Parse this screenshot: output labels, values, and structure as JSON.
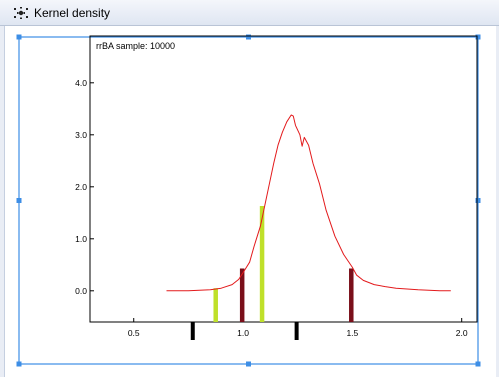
{
  "window": {
    "title": "Kernel density",
    "icon": "kernel-density-app-icon"
  },
  "colors": {
    "curve": "#e31a1c",
    "dark_bar": "#7a0f1a",
    "light_bar": "#bfe02a",
    "rug": "#000000",
    "selection": "#3d8ee6"
  },
  "chart_data": {
    "type": "line",
    "title": "rrBA sample: 10000",
    "xlabel": "",
    "ylabel": "",
    "xlim": [
      0.3,
      2.07
    ],
    "ylim": [
      -0.6,
      4.9
    ],
    "xticks": [
      0.5,
      1.0,
      1.5,
      2.0
    ],
    "xtick_labels": [
      "0.5",
      "1.0",
      "1.5",
      "2.0"
    ],
    "yticks": [
      0.0,
      1.0,
      2.0,
      3.0,
      4.0
    ],
    "ytick_labels": [
      "0.0",
      "1.0",
      "2.0",
      "3.0",
      "4.0"
    ],
    "grid": false,
    "series": [
      {
        "x": [
          0.65,
          0.75,
          0.85,
          0.9,
          0.95,
          0.98,
          1.0,
          1.03,
          1.05,
          1.08,
          1.1,
          1.12,
          1.14,
          1.16,
          1.18,
          1.2,
          1.22,
          1.23,
          1.24,
          1.26,
          1.27,
          1.28,
          1.3,
          1.32,
          1.35,
          1.38,
          1.42,
          1.46,
          1.5,
          1.52,
          1.55,
          1.6,
          1.65,
          1.7,
          1.8,
          1.9,
          1.95
        ],
        "y": [
          0.0,
          0.0,
          0.02,
          0.05,
          0.12,
          0.22,
          0.35,
          0.55,
          0.85,
          1.25,
          1.65,
          2.05,
          2.45,
          2.8,
          3.05,
          3.25,
          3.38,
          3.36,
          3.18,
          3.0,
          2.78,
          2.95,
          2.8,
          2.45,
          2.05,
          1.55,
          1.05,
          0.7,
          0.45,
          0.3,
          0.2,
          0.12,
          0.08,
          0.05,
          0.02,
          0.0,
          0.0
        ]
      }
    ],
    "bars": [
      {
        "x": 0.875,
        "y": 0.05,
        "color": "light"
      },
      {
        "x": 0.996,
        "y": 0.43,
        "color": "dark"
      },
      {
        "x": 1.087,
        "y": 1.63,
        "color": "light"
      },
      {
        "x": 1.495,
        "y": 0.43,
        "color": "dark"
      }
    ],
    "rug": [
      0.77,
      1.245
    ]
  }
}
